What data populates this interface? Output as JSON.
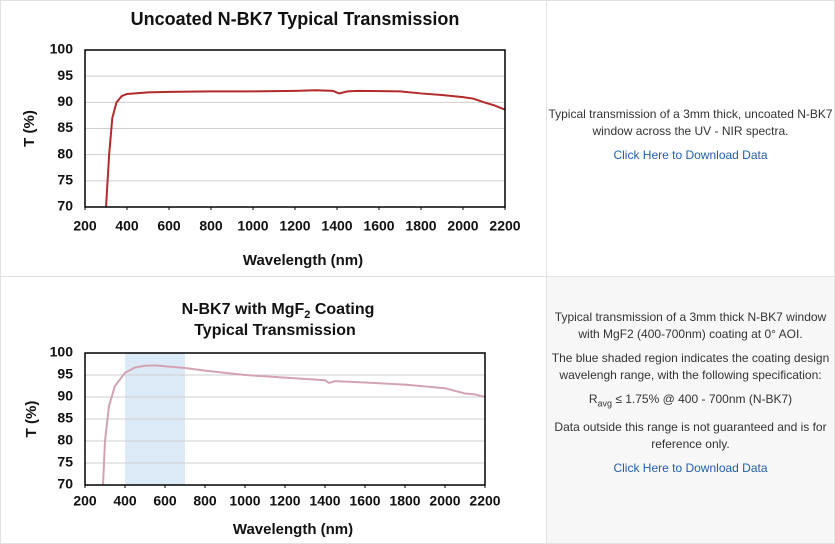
{
  "chart_data": [
    {
      "type": "line",
      "title": "Uncoated N-BK7 Typical Transmission",
      "x_label": "Wavelength (nm)",
      "y_label": "T (%)",
      "xlim": [
        200,
        2200
      ],
      "xticks": [
        200,
        400,
        600,
        800,
        1000,
        1200,
        1400,
        1600,
        1800,
        2000,
        2200
      ],
      "ylim": [
        70,
        100
      ],
      "yticks": [
        70,
        75,
        80,
        85,
        90,
        95,
        100
      ],
      "grid": true,
      "series": [
        {
          "color": "#b22a2a",
          "x": [
            300,
            315,
            330,
            350,
            375,
            400,
            500,
            600,
            800,
            1000,
            1200,
            1300,
            1380,
            1410,
            1450,
            1500,
            1700,
            1800,
            1900,
            2000,
            2050,
            2100,
            2150,
            2200
          ],
          "values": [
            70,
            80,
            87,
            90,
            91.2,
            91.6,
            91.9,
            92,
            92.1,
            92.1,
            92.2,
            92.3,
            92.2,
            91.7,
            92.1,
            92.2,
            92.1,
            91.7,
            91.4,
            91,
            90.7,
            90,
            89.4,
            88.6
          ]
        }
      ]
    },
    {
      "type": "line",
      "title": "N-BK7 with MgF",
      "title_sub": "2",
      "title_rest": " Coating",
      "subtitle": "Typical Transmission",
      "x_label": "Wavelength (nm)",
      "y_label": "T (%)",
      "xlim": [
        200,
        2200
      ],
      "xticks": [
        200,
        400,
        600,
        800,
        1000,
        1200,
        1400,
        1600,
        1800,
        2000,
        2200
      ],
      "ylim": [
        70,
        100
      ],
      "yticks": [
        70,
        75,
        80,
        85,
        90,
        95,
        100
      ],
      "grid": true,
      "shade": [
        400,
        700
      ],
      "shade_color": "#dce9f6",
      "series": [
        {
          "color": "#d3a3b3",
          "x": [
            290,
            300,
            320,
            350,
            400,
            450,
            500,
            550,
            600,
            700,
            800,
            1000,
            1200,
            1400,
            1420,
            1450,
            1600,
            1800,
            2000,
            2100,
            2150,
            2200
          ],
          "values": [
            70,
            80,
            88,
            92.5,
            95.5,
            96.7,
            97.1,
            97.2,
            97,
            96.6,
            96,
            95,
            94.4,
            93.8,
            93.2,
            93.6,
            93.3,
            92.8,
            92,
            90.8,
            90.6,
            90
          ]
        }
      ]
    }
  ],
  "descriptions": [
    {
      "paragraphs": [
        "Typical transmission of a 3mm thick, uncoated N-BK7 window across the UV - NIR spectra."
      ],
      "link": "Click Here to Download Data"
    },
    {
      "paragraphs": [
        "Typical transmission of a 3mm thick N-BK7 window with MgF2 (400-700nm) coating at 0° AOI.",
        "The blue shaded region indicates the coating design wavelengh range, with the following specification:"
      ],
      "spec": [
        "R",
        "avg",
        " ≤ 1.75% @ 400 - 700nm (N-BK7)"
      ],
      "note": "Data outside this range is not guaranteed and is for reference only.",
      "link": "Click Here to Download Data"
    }
  ]
}
